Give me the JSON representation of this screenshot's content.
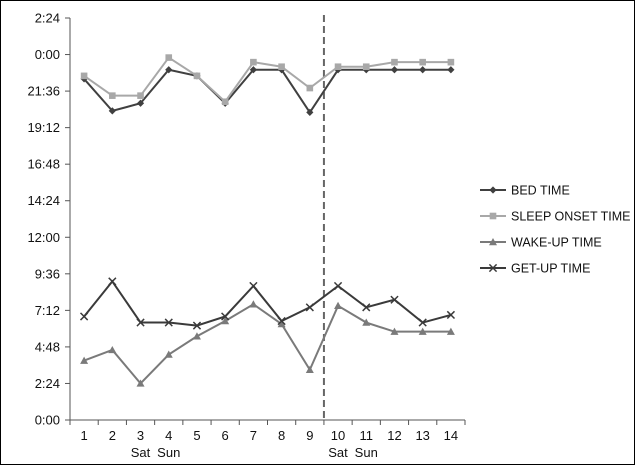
{
  "chart_data": {
    "type": "line",
    "title": "",
    "xlabel": "",
    "ylabel": "",
    "x": [
      1,
      2,
      3,
      4,
      5,
      6,
      7,
      8,
      9,
      10,
      11,
      12,
      13,
      14
    ],
    "x_tick_labels": [
      "1",
      "2",
      "3",
      "4",
      "5",
      "6",
      "7",
      "8",
      "9",
      "10",
      "11",
      "12",
      "13",
      "14"
    ],
    "x_sub_labels": [
      {
        "x": 3,
        "label": "Sat"
      },
      {
        "x": 4,
        "label": "Sun"
      },
      {
        "x": 10,
        "label": "Sat"
      },
      {
        "x": 11,
        "label": "Sun"
      }
    ],
    "y_ticks": [
      "0:00",
      "2:24",
      "4:48",
      "7:12",
      "9:36",
      "12:00",
      "14:24",
      "16:48",
      "19:12",
      "21:36",
      "0:00",
      "2:24"
    ],
    "ylim_hours": [
      0,
      26.4
    ],
    "y_tick_step_hours": 2.4,
    "grid": false,
    "legend_position": "right",
    "vertical_marker": {
      "x": 9.5,
      "style": "dashed"
    },
    "series": [
      {
        "name": "BED TIME",
        "marker": "diamond",
        "color": "#404040",
        "values": [
          22.4,
          20.3,
          20.8,
          23.0,
          22.6,
          20.8,
          23.0,
          23.0,
          20.2,
          23.0,
          23.0,
          23.0,
          23.0,
          23.0
        ]
      },
      {
        "name": "SLEEP ONSET TIME",
        "marker": "square",
        "color": "#a8a8a8",
        "values": [
          22.6,
          21.3,
          21.3,
          23.8,
          22.6,
          20.9,
          23.5,
          23.2,
          21.8,
          23.2,
          23.2,
          23.5,
          23.5,
          23.5
        ]
      },
      {
        "name": "WAKE-UP TIME",
        "marker": "triangle",
        "color": "#7a7a7a",
        "values": [
          3.9,
          4.6,
          2.4,
          4.3,
          5.5,
          6.5,
          7.6,
          6.3,
          3.3,
          7.5,
          6.4,
          5.8,
          5.8,
          5.8
        ]
      },
      {
        "name": "GET-UP TIME",
        "marker": "x",
        "color": "#3a3a3a",
        "values": [
          6.8,
          9.1,
          6.4,
          6.4,
          6.2,
          6.8,
          8.8,
          6.5,
          7.4,
          8.8,
          7.4,
          7.9,
          6.4,
          6.9
        ]
      }
    ]
  }
}
